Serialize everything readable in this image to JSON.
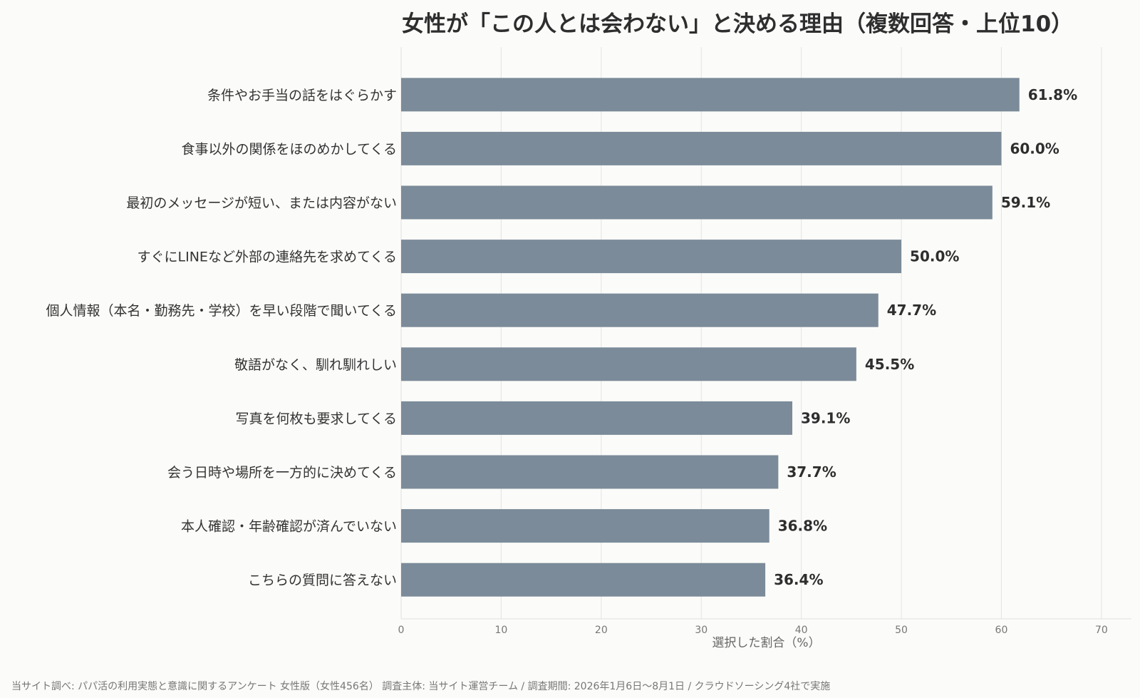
{
  "chart_data": {
    "type": "bar",
    "orientation": "horizontal",
    "title": "女性が「この人とは会わない」と決める理由（複数回答・上位10）",
    "xlabel": "選択した割合（%）",
    "ylabel": "",
    "xlim": [
      0,
      73
    ],
    "xticks": [
      0,
      10,
      20,
      30,
      40,
      50,
      60,
      70
    ],
    "grid": "vertical",
    "bar_color": "#7b8b99",
    "categories": [
      "条件やお手当の話をはぐらかす",
      "食事以外の関係をほのめかしてくる",
      "最初のメッセージが短い、または内容がない",
      "すぐにLINEなど外部の連絡先を求めてくる",
      "個人情報（本名・勤務先・学校）を早い段階で聞いてくる",
      "敬語がなく、馴れ馴れしい",
      "写真を何枚も要求してくる",
      "会う日時や場所を一方的に決めてくる",
      "本人確認・年齢確認が済んでいない",
      "こちらの質問に答えない"
    ],
    "values": [
      61.8,
      60.0,
      59.1,
      50.0,
      47.7,
      45.5,
      39.1,
      37.7,
      36.8,
      36.4
    ],
    "value_labels": [
      "61.8%",
      "60.0%",
      "59.1%",
      "50.0%",
      "47.7%",
      "45.5%",
      "39.1%",
      "37.7%",
      "36.8%",
      "36.4%"
    ]
  },
  "source_note": "当サイト調べ: パパ活の利用実態と意識に関するアンケート 女性版（女性456名） 調査主体: 当サイト運営チーム / 調査期間: 2026年1月6日〜8月1日 / クラウドソーシング4社で実施"
}
